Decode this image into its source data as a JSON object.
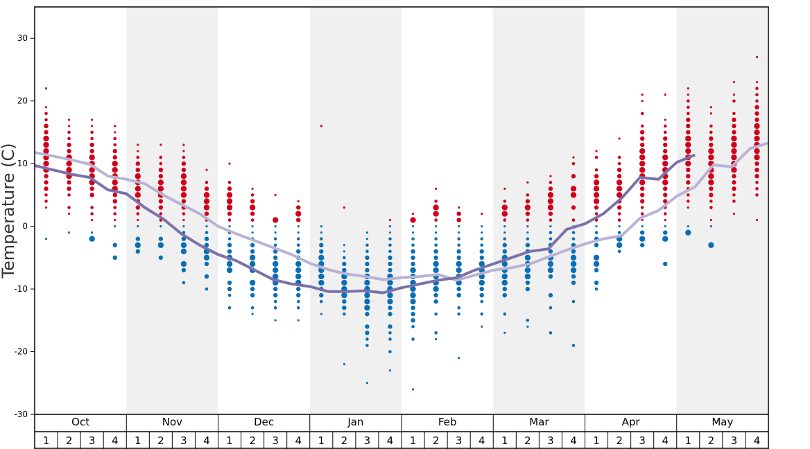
{
  "chart_data": {
    "type": "scatter",
    "title": "",
    "ylabel": "Temperature (C)",
    "ylim": [
      -30,
      35
    ],
    "yticks": [
      -30,
      -20,
      -10,
      0,
      10,
      20,
      30
    ],
    "months": [
      "Oct",
      "Nov",
      "Dec",
      "Jan",
      "Feb",
      "Mar",
      "Apr",
      "May"
    ],
    "weeks": [
      "1",
      "2",
      "3",
      "4"
    ],
    "colors": {
      "warm": "#d0021b",
      "cold": "#0a6eb4",
      "line_high": "#b8b3d4",
      "line_low": "#7b71a8",
      "band": "#f0f0f0"
    },
    "series": [
      {
        "name": "",
        "values": [
          11.8,
          11.2,
          10.6,
          9.9,
          8.0,
          7.5,
          6.8,
          5.0,
          3.5,
          2.0,
          0.0,
          -1.2,
          -2.3,
          -3.4,
          -4.5,
          -5.9,
          -6.9,
          -7.6,
          -8.0,
          -8.5,
          -8.2,
          -8.0,
          -7.7,
          -8.6,
          -7.8,
          -7.0,
          -6.6,
          -6.0,
          -4.9,
          -3.8,
          -2.8,
          -2.0,
          -1.5,
          1.3,
          2.5,
          4.8,
          6.3,
          9.8,
          9.5,
          12.4,
          13.3
        ]
      },
      {
        "name": "",
        "values": [
          9.7,
          9.0,
          8.3,
          7.8,
          5.8,
          5.2,
          3.0,
          1.2,
          -1.2,
          -3.0,
          -4.5,
          -5.5,
          -7.0,
          -8.5,
          -9.2,
          -9.6,
          -10.4,
          -10.4,
          -10.3,
          -10.6,
          -9.8,
          -9.2,
          -8.6,
          -8.2,
          -7.0,
          -6.0,
          -5.0,
          -4.0,
          -3.6,
          -0.5,
          0.4,
          2.0,
          4.5,
          7.8,
          7.5,
          10.2,
          11.4
        ]
      }
    ],
    "points": [
      {
        "w": 0,
        "v": [
          22,
          19,
          18,
          17,
          16,
          16,
          15,
          14,
          13,
          12,
          11,
          10,
          9,
          8,
          7,
          6,
          5,
          4,
          3
        ],
        "c": [
          -2
        ]
      },
      {
        "w": 1,
        "v": [
          17,
          16,
          15,
          14,
          13,
          12,
          11,
          10,
          9,
          8,
          7,
          6,
          5,
          3,
          2
        ],
        "c": [
          -1
        ]
      },
      {
        "w": 2,
        "v": [
          17,
          16,
          15,
          14,
          13,
          12,
          11,
          10,
          9,
          8,
          7,
          6,
          5,
          3,
          2,
          1
        ],
        "c": [
          -1,
          -2
        ]
      },
      {
        "w": 3,
        "v": [
          16,
          15,
          14,
          13,
          12,
          11,
          10,
          9,
          8,
          7,
          6,
          5,
          4,
          3,
          2,
          1
        ],
        "c": [
          0,
          -3,
          -5
        ]
      },
      {
        "w": 4,
        "v": [
          13,
          12,
          11,
          10,
          9,
          8,
          7,
          6,
          5,
          4,
          3,
          2,
          1
        ],
        "c": [
          0,
          -2,
          -3,
          -4
        ]
      },
      {
        "w": 5,
        "v": [
          13,
          11,
          10,
          9,
          8,
          7,
          6,
          5,
          4,
          3,
          2,
          1
        ],
        "c": [
          0,
          -2,
          -3,
          -5
        ]
      },
      {
        "w": 6,
        "v": [
          13,
          12,
          11,
          10,
          9,
          8,
          7,
          6,
          5,
          4,
          3,
          2,
          1
        ],
        "c": [
          0,
          -1,
          -2,
          -3,
          -4,
          -6,
          -7,
          -9
        ]
      },
      {
        "w": 7,
        "v": [
          9,
          7,
          6,
          5,
          4,
          3,
          2,
          1
        ],
        "c": [
          0,
          -1,
          -2,
          -3,
          -4,
          -5,
          -6,
          -8,
          -10
        ]
      },
      {
        "w": 8,
        "v": [
          10,
          7,
          6,
          5,
          4,
          3,
          2,
          1
        ],
        "c": [
          0,
          -1,
          -2,
          -3,
          -4,
          -5,
          -6,
          -7,
          -9,
          -10,
          -11,
          -13
        ]
      },
      {
        "w": 9,
        "v": [
          6,
          5,
          4,
          3,
          2,
          1
        ],
        "c": [
          0,
          -1,
          -2,
          -3,
          -4,
          -5,
          -6,
          -7,
          -9,
          -10,
          -11,
          -13,
          -14
        ]
      },
      {
        "w": 10,
        "v": [
          5,
          1
        ],
        "c": [
          0,
          -1,
          -2,
          -3,
          -4,
          -5,
          -6,
          -7,
          -8,
          -9,
          -10,
          -11,
          -12,
          -13,
          -15
        ]
      },
      {
        "w": 11,
        "v": [
          4,
          3,
          2,
          1
        ],
        "c": [
          0,
          -1,
          -2,
          -3,
          -4,
          -5,
          -6,
          -7,
          -8,
          -9,
          -10,
          -11,
          -12,
          -13,
          -15
        ]
      },
      {
        "w": 12,
        "v": [
          16
        ],
        "c": [
          0,
          -1,
          -2,
          -3,
          -4,
          -5,
          -6,
          -7,
          -8,
          -9,
          -10,
          -11,
          -12,
          -14
        ]
      },
      {
        "w": 13,
        "v": [
          3
        ],
        "c": [
          -3,
          -4,
          -5,
          -6,
          -7,
          -8,
          -9,
          -10,
          -11,
          -12,
          -13,
          -14,
          -22
        ]
      },
      {
        "w": 14,
        "v": [],
        "c": [
          -1,
          -2,
          -3,
          -4,
          -5,
          -6,
          -7,
          -8,
          -9,
          -10,
          -11,
          -12,
          -13,
          -14,
          -16,
          -17,
          -18,
          -19,
          -25
        ]
      },
      {
        "w": 15,
        "v": [
          1
        ],
        "c": [
          0,
          -1,
          -2,
          -3,
          -4,
          -5,
          -6,
          -7,
          -8,
          -9,
          -10,
          -11,
          -12,
          -13,
          -14,
          -16,
          -17,
          -18,
          -20,
          -23
        ]
      },
      {
        "w": 16,
        "v": [
          2,
          1
        ],
        "c": [
          0,
          -1,
          -2,
          -3,
          -4,
          -5,
          -6,
          -7,
          -8,
          -9,
          -10,
          -11,
          -12,
          -13,
          -14,
          -15,
          -16,
          -18,
          -26
        ]
      },
      {
        "w": 17,
        "v": [
          6,
          4,
          3,
          2,
          1
        ],
        "c": [
          0,
          -1,
          -2,
          -3,
          -4,
          -5,
          -6,
          -7,
          -8,
          -9,
          -10,
          -11,
          -12,
          -14,
          -17,
          -18
        ]
      },
      {
        "w": 18,
        "v": [
          3,
          2,
          1
        ],
        "c": [
          0,
          -1,
          -2,
          -3,
          -4,
          -5,
          -6,
          -7,
          -8,
          -9,
          -10,
          -11,
          -13,
          -14,
          -21
        ]
      },
      {
        "w": 19,
        "v": [
          2
        ],
        "c": [
          0,
          -1,
          -2,
          -3,
          -4,
          -5,
          -6,
          -7,
          -8,
          -9,
          -10,
          -11,
          -12,
          -14,
          -16
        ]
      },
      {
        "w": 20,
        "v": [
          6,
          4,
          3,
          2,
          1
        ],
        "c": [
          0,
          -1,
          -2,
          -3,
          -4,
          -5,
          -6,
          -7,
          -8,
          -9,
          -10,
          -11,
          -14,
          -17
        ]
      },
      {
        "w": 21,
        "v": [
          7,
          5,
          4,
          3,
          2,
          1
        ],
        "c": [
          0,
          -1,
          -2,
          -3,
          -4,
          -5,
          -6,
          -7,
          -8,
          -9,
          -10,
          -15,
          -16
        ]
      },
      {
        "w": 22,
        "v": [
          8,
          7,
          6,
          5,
          4,
          3,
          2,
          1
        ],
        "c": [
          0,
          -1,
          -2,
          -3,
          -4,
          -5,
          -6,
          -7,
          -8,
          -11,
          -13,
          -17
        ]
      },
      {
        "w": 23,
        "v": [
          11,
          10,
          8,
          6,
          5,
          3,
          1
        ],
        "c": [
          0,
          -1,
          -2,
          -3,
          -4,
          -5,
          -6,
          -7,
          -8,
          -9,
          -12,
          -19
        ]
      },
      {
        "w": 24,
        "v": [
          12,
          11,
          9,
          8,
          7,
          6,
          5,
          4,
          3,
          2,
          1
        ],
        "c": [
          0,
          -1,
          -2,
          -3,
          -5,
          -6,
          -7,
          -9,
          -10
        ]
      },
      {
        "w": 25,
        "v": [
          14,
          11,
          10,
          9,
          8,
          7,
          6,
          5,
          4,
          3,
          2,
          1
        ],
        "c": [
          0,
          -1,
          -2,
          -3,
          -4
        ]
      },
      {
        "w": 26,
        "v": [
          21,
          20,
          18,
          16,
          15,
          14,
          13,
          12,
          11,
          10,
          9,
          8,
          7,
          6,
          5,
          4,
          3,
          2,
          1
        ],
        "c": [
          0,
          -1,
          -2,
          -3
        ]
      },
      {
        "w": 27,
        "v": [
          21,
          17,
          16,
          15,
          14,
          13,
          12,
          11,
          10,
          9,
          8,
          7,
          6,
          5,
          4,
          3,
          2,
          1
        ],
        "c": [
          0,
          -1,
          -2,
          -6
        ]
      },
      {
        "w": 28,
        "v": [
          22,
          21,
          20,
          19,
          18,
          17,
          16,
          15,
          14,
          13,
          12,
          11,
          10,
          9,
          8,
          7,
          6,
          5,
          4,
          3
        ],
        "c": [
          0,
          -1
        ]
      },
      {
        "w": 29,
        "v": [
          19,
          18,
          16,
          15,
          14,
          13,
          12,
          11,
          10,
          9,
          8,
          7,
          6,
          5,
          4,
          3,
          1
        ],
        "c": [
          0,
          -3
        ]
      },
      {
        "w": 30,
        "v": [
          23,
          21,
          20,
          18,
          17,
          16,
          15,
          14,
          13,
          12,
          11,
          10,
          9,
          8,
          7,
          6,
          5,
          4,
          2
        ],
        "c": []
      },
      {
        "w": 31,
        "v": [
          27,
          23,
          22,
          21,
          20,
          19,
          18,
          17,
          16,
          15,
          14,
          13,
          12,
          11,
          10,
          9,
          8,
          7,
          6,
          5,
          1
        ],
        "c": []
      }
    ]
  }
}
